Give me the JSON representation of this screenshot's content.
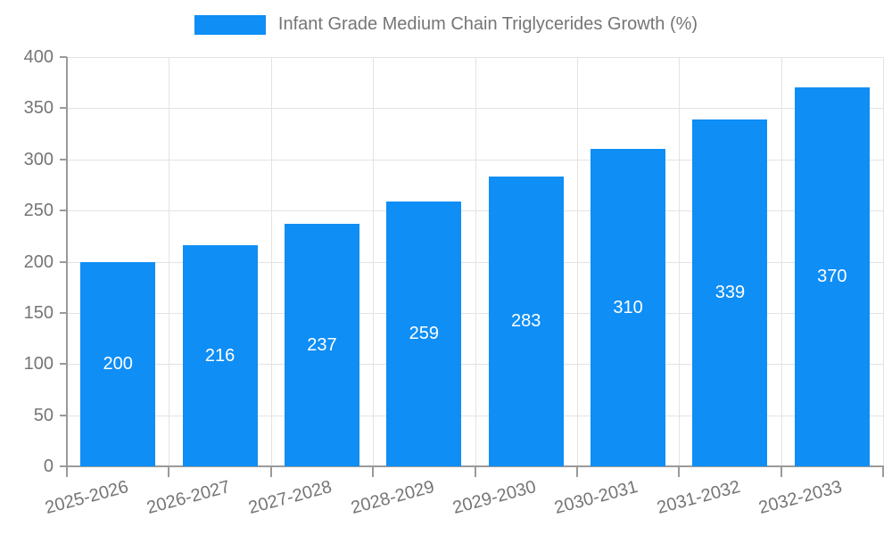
{
  "chart_data": {
    "type": "bar",
    "title": "Infant Grade Medium Chain Triglycerides Growth (%)",
    "legend_label": "Infant Grade Medium Chain Triglycerides Growth (%)",
    "legend_position": "top",
    "categories": [
      "2025-2026",
      "2026-2027",
      "2027-2028",
      "2028-2029",
      "2029-2030",
      "2030-2031",
      "2031-2032",
      "2032-2033"
    ],
    "values": [
      200,
      216,
      237,
      259,
      283,
      310,
      339,
      370
    ],
    "data_labels": [
      "200",
      "216",
      "237",
      "259",
      "283",
      "310",
      "339",
      "370"
    ],
    "xlabel": "",
    "ylabel": "",
    "ylim": [
      0,
      400
    ],
    "ytick_step": 50,
    "ytick_labels": [
      "0",
      "50",
      "100",
      "150",
      "200",
      "250",
      "300",
      "350",
      "400"
    ],
    "grid": "on",
    "colors": {
      "bar": "#0f8ef5",
      "bar_value_text": "#ffffff",
      "axis": "#9a9a9a",
      "gridline": "#e3e3e3",
      "tick_text": "#757575",
      "title_text": "#757575"
    }
  }
}
